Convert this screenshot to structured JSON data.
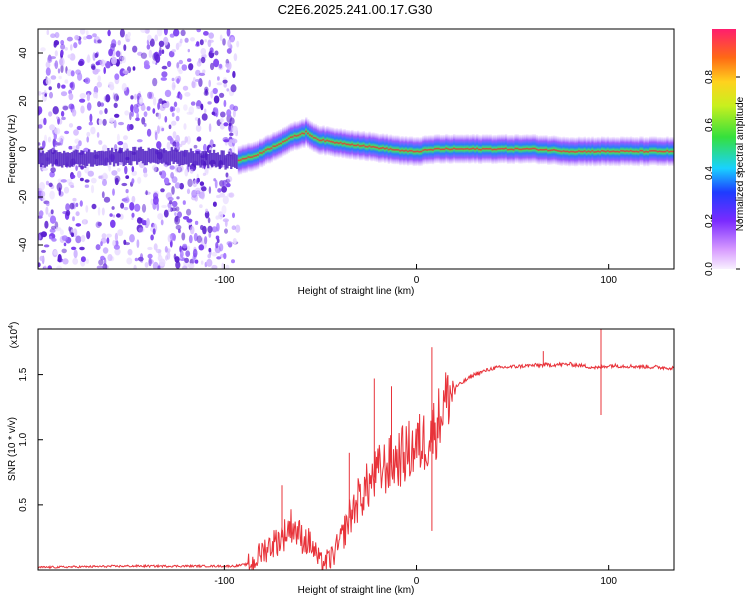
{
  "title": "C2E6.2025.241.00.17.G30",
  "colors": {
    "snr_line": "#e8333a",
    "speckle": "#5a1fd0",
    "band_core": "#e8333a"
  },
  "chart_data": [
    {
      "type": "heatmap",
      "title": "C2E6.2025.241.00.17.G30",
      "xlabel": "Height of straight line (km)",
      "ylabel": "Frequency (Hz)",
      "xlim": [
        -197,
        134
      ],
      "ylim": [
        -50,
        50
      ],
      "x_ticks": [
        -100,
        0,
        100
      ],
      "x_tick_labels": [
        "-100",
        "0",
        "100"
      ],
      "y_ticks": [
        -40,
        -20,
        0,
        20,
        40
      ],
      "y_tick_labels": [
        "-40",
        "-20",
        "0",
        "20",
        "40"
      ],
      "noise_region_km": [
        -197,
        -93
      ],
      "band_centerline": {
        "x_km": [
          -197,
          -170,
          -150,
          -130,
          -110,
          -95,
          -85,
          -75,
          -65,
          -58,
          -52,
          -45,
          -35,
          -25,
          -15,
          -5,
          0,
          10,
          20,
          40,
          60,
          80,
          90,
          100,
          110,
          120,
          134
        ],
        "freq_hz": [
          -4,
          -4,
          -3,
          -3,
          -4,
          -5,
          -3,
          1,
          5,
          7,
          4,
          3,
          2,
          1,
          0,
          -1,
          -1,
          0,
          0,
          0,
          0,
          -1,
          -1,
          -1,
          -1,
          -1,
          -1
        ]
      },
      "colorbar": {
        "label": "Normalized spectral amplitude",
        "ticks": [
          0.0,
          0.2,
          0.4,
          0.6,
          0.8
        ],
        "tick_labels": [
          "0.0",
          "0.2",
          "0.4",
          "0.6",
          "0.8"
        ],
        "range": [
          0,
          1
        ],
        "colormap": "rainbow"
      }
    },
    {
      "type": "line",
      "xlabel": "Height of straight line (km)",
      "ylabel": "SNR (10 * v/v)",
      "y_scale_note": "(x10^4)",
      "y_scale_base": "(x10",
      "y_scale_exp": "4",
      "xlim": [
        -197,
        134
      ],
      "ylim": [
        0,
        1.85
      ],
      "x_ticks": [
        -100,
        0,
        100
      ],
      "x_tick_labels": [
        "-100",
        "0",
        "100"
      ],
      "y_ticks": [
        0.5,
        1.0,
        1.5
      ],
      "y_tick_labels": [
        "0.5",
        "1.0",
        "1.5"
      ],
      "series": [
        {
          "name": "SNR",
          "x": [
            -197,
            -150,
            -120,
            -95,
            -85,
            -80,
            -75,
            -70,
            -65,
            -60,
            -55,
            -50,
            -45,
            -40,
            -35,
            -30,
            -25,
            -20,
            -15,
            -10,
            -5,
            0,
            5,
            10,
            15,
            20,
            30,
            40,
            60,
            80,
            95,
            100,
            120,
            134
          ],
          "y": [
            0.02,
            0.03,
            0.03,
            0.03,
            0.05,
            0.15,
            0.2,
            0.25,
            0.35,
            0.25,
            0.2,
            0.05,
            0.08,
            0.2,
            0.4,
            0.55,
            0.65,
            0.75,
            0.8,
            0.85,
            0.9,
            0.95,
            1.0,
            1.1,
            1.3,
            1.4,
            1.5,
            1.55,
            1.57,
            1.58,
            1.55,
            1.57,
            1.56,
            1.55
          ]
        }
      ],
      "spikes": [
        {
          "x": -70,
          "y": 0.65
        },
        {
          "x": -35,
          "y": 0.9
        },
        {
          "x": -22,
          "y": 1.47
        },
        {
          "x": -13,
          "y": 1.41
        },
        {
          "x": 8,
          "y": 1.71
        },
        {
          "x": 8,
          "y": 0.3
        },
        {
          "x": 66,
          "y": 1.68
        },
        {
          "x": 96,
          "y": 1.86
        },
        {
          "x": 96,
          "y": 1.19
        }
      ]
    }
  ]
}
